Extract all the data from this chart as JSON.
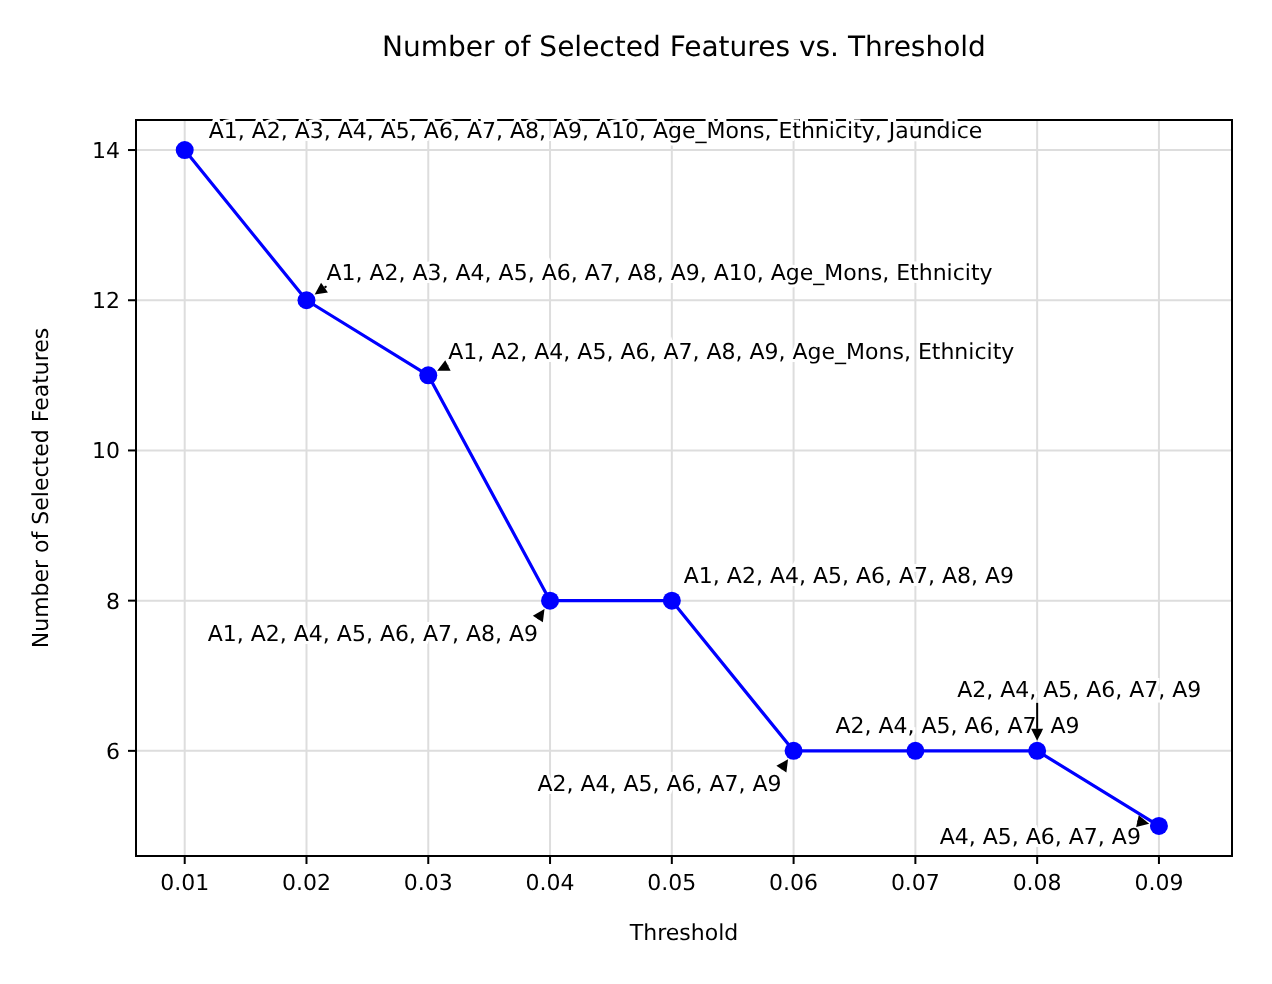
{
  "chart_data": {
    "type": "line",
    "title": "Number of Selected Features vs. Threshold",
    "xlabel": "Threshold",
    "ylabel": "Number of Selected Features",
    "x": [
      0.01,
      0.02,
      0.03,
      0.04,
      0.05,
      0.06,
      0.07,
      0.08,
      0.09
    ],
    "series": [
      {
        "color": "#0000ff",
        "values": [
          14,
          12,
          11,
          8,
          8,
          6,
          6,
          6,
          5
        ]
      }
    ],
    "xlim": [
      0.006,
      0.096
    ],
    "xticks": [
      {
        "value": 0.01,
        "label": "0.01"
      },
      {
        "value": 0.02,
        "label": "0.02"
      },
      {
        "value": 0.03,
        "label": "0.03"
      },
      {
        "value": 0.04,
        "label": "0.04"
      },
      {
        "value": 0.05,
        "label": "0.05"
      },
      {
        "value": 0.06,
        "label": "0.06"
      },
      {
        "value": 0.07,
        "label": "0.07"
      },
      {
        "value": 0.08,
        "label": "0.08"
      },
      {
        "value": 0.09,
        "label": "0.09"
      }
    ],
    "ylim": [
      4.6,
      14.4
    ],
    "yticks": [
      6,
      8,
      10,
      12,
      14
    ],
    "grid": true,
    "marker": "circle",
    "line_style": "solid",
    "annotations": [
      {
        "text": "A1, A2, A3, A4, A5, A6, A7, A8, A9, A10, Age_Mons, Ethnicity, Jaundice",
        "x": 0.01,
        "y": 14
      },
      {
        "text": "A1, A2, A3, A4, A5, A6, A7, A8, A9, A10, Age_Mons, Ethnicity",
        "x": 0.02,
        "y": 12
      },
      {
        "text": "A1, A2, A4, A5, A6, A7, A8, A9, Age_Mons, Ethnicity",
        "x": 0.03,
        "y": 11
      },
      {
        "text": "A1, A2, A4, A5, A6, A7, A8, A9",
        "x": 0.04,
        "y": 8
      },
      {
        "text": "A1, A2, A4, A5, A6, A7, A8, A9",
        "x": 0.05,
        "y": 8
      },
      {
        "text": "A2, A4, A5, A6, A7, A9",
        "x": 0.06,
        "y": 6
      },
      {
        "text": "A2, A4, A5, A6, A7, A9",
        "x": 0.07,
        "y": 6
      },
      {
        "text": "A2, A4, A5, A6, A7, A9",
        "x": 0.08,
        "y": 6
      },
      {
        "text": "A4, A5, A6, A7, A9",
        "x": 0.09,
        "y": 5
      }
    ]
  }
}
